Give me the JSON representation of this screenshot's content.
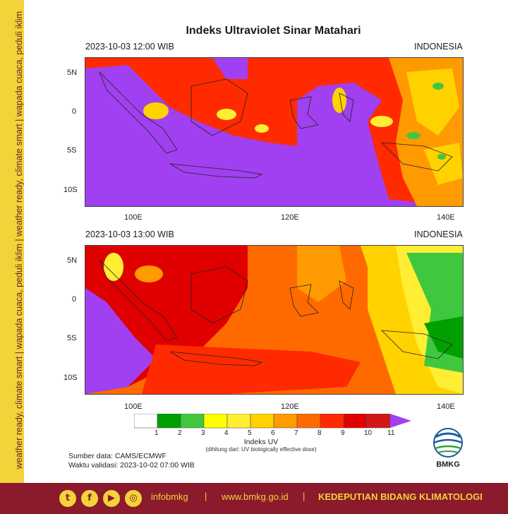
{
  "side_banner": {
    "text": "weather ready, climate smart | wapada cuaca, peduli iklim | weather ready, climate smart | wapada cuaca, peduli iklim"
  },
  "title": "Indeks Ultraviolet Sinar Matahari",
  "maps": [
    {
      "datetime": "2023-10-03   12:00 WIB",
      "region": "INDONESIA"
    },
    {
      "datetime": "2023-10-03   13:00 WIB",
      "region": "INDONESIA"
    }
  ],
  "axes": {
    "lat_ticks": [
      "5N",
      "0",
      "5S",
      "10S"
    ],
    "lon_ticks": [
      "100E",
      "120E",
      "140E"
    ]
  },
  "colorbar": {
    "labels": [
      "1",
      "2",
      "3",
      "4",
      "5",
      "6",
      "7",
      "8",
      "9",
      "10",
      "11"
    ],
    "colors": [
      "#ffffff",
      "#00a000",
      "#3fc83f",
      "#ffff00",
      "#ffee33",
      "#ffd200",
      "#ff9a00",
      "#ff6a00",
      "#ff2a00",
      "#e00000",
      "#d01818",
      "#a040f0"
    ],
    "title": "Indeks UV",
    "note": "(dihitung dari: UV biologically effective dose)"
  },
  "source": {
    "line1": "Sumber data: CAMS/ECMWF",
    "line2": "Waktu validasi: 2023-10-02 07:00 WIB"
  },
  "logo": {
    "text": "BMKG"
  },
  "footer": {
    "icons": [
      "twitter-icon",
      "facebook-icon",
      "youtube-icon",
      "instagram-icon"
    ],
    "handle": "infobmkg",
    "website": "www.bmkg.go.id",
    "dept": "KEDEPUTIAN BIDANG KLIMATOLOGI",
    "separator": "|"
  }
}
